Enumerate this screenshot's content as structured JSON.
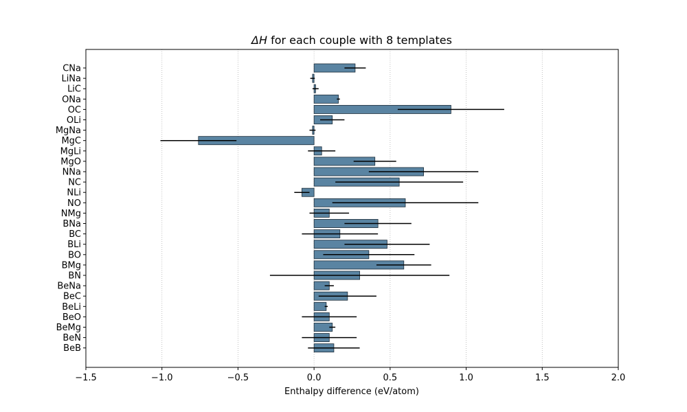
{
  "chart_data": {
    "type": "bar",
    "orientation": "horizontal",
    "title_prefix": "ΔH",
    "title_suffix": " for each couple with 8 templates",
    "xlabel": "Enthalpy difference (eV/atom)",
    "ylabel": "",
    "xlim": [
      -1.5,
      2.0
    ],
    "xticks": [
      -1.5,
      -1.0,
      -0.5,
      0.0,
      0.5,
      1.0,
      1.5,
      2.0
    ],
    "xtick_labels": [
      "−1.5",
      "−1.0",
      "−0.5",
      "0.0",
      "0.5",
      "1.0",
      "1.5",
      "2.0"
    ],
    "grid": "x-dotted",
    "bar_color": "#5a84a2",
    "bar_edge_color": "#1a2a36",
    "error_color": "#000000",
    "categories": [
      "CNa",
      "LiNa",
      "LiC",
      "ONa",
      "OC",
      "OLi",
      "MgNa",
      "MgC",
      "MgLi",
      "MgO",
      "NNa",
      "NC",
      "NLi",
      "NO",
      "NMg",
      "BNa",
      "BC",
      "BLi",
      "BO",
      "BMg",
      "BN",
      "BeNa",
      "BeC",
      "BeLi",
      "BeO",
      "BeMg",
      "BeN",
      "BeB"
    ],
    "values": [
      0.27,
      -0.01,
      0.01,
      0.16,
      0.9,
      0.12,
      -0.01,
      -0.76,
      0.05,
      0.4,
      0.72,
      0.56,
      -0.08,
      0.6,
      0.1,
      0.42,
      0.17,
      0.48,
      0.36,
      0.59,
      0.3,
      0.1,
      0.22,
      0.08,
      0.1,
      0.12,
      0.1,
      0.13
    ],
    "errors": [
      0.07,
      0.015,
      0.02,
      0.01,
      0.35,
      0.08,
      0.02,
      0.25,
      0.09,
      0.14,
      0.36,
      0.42,
      0.05,
      0.48,
      0.13,
      0.22,
      0.25,
      0.28,
      0.3,
      0.18,
      0.59,
      0.03,
      0.19,
      0.01,
      0.18,
      0.02,
      0.18,
      0.17
    ]
  }
}
